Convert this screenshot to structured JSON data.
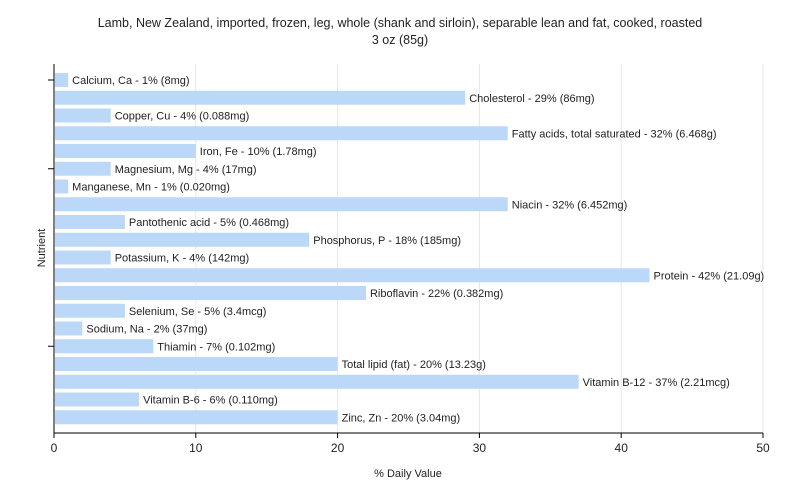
{
  "chart_data": {
    "type": "bar",
    "orientation": "horizontal",
    "title": "Lamb, New Zealand, imported, frozen, leg, whole (shank and sirloin), separable lean and fat, cooked, roasted",
    "subtitle": "3 oz (85g)",
    "xlabel": "% Daily Value",
    "ylabel": "Nutrient",
    "xlim": [
      0,
      50
    ],
    "xticks": [
      0,
      10,
      20,
      30,
      40,
      50
    ],
    "grid": true,
    "bar_color": "#bcd8f8",
    "grid_color": "#e6e6e6",
    "categories": [
      "Calcium, Ca",
      "Cholesterol",
      "Copper, Cu",
      "Fatty acids, total saturated",
      "Iron, Fe",
      "Magnesium, Mg",
      "Manganese, Mn",
      "Niacin",
      "Pantothenic acid",
      "Phosphorus, P",
      "Potassium, K",
      "Protein",
      "Riboflavin",
      "Selenium, Se",
      "Sodium, Na",
      "Thiamin",
      "Total lipid (fat)",
      "Vitamin B-12",
      "Vitamin B-6",
      "Zinc, Zn"
    ],
    "values": [
      1,
      29,
      4,
      32,
      10,
      4,
      1,
      32,
      5,
      18,
      4,
      42,
      22,
      5,
      2,
      7,
      20,
      37,
      6,
      20
    ],
    "labels": [
      "Calcium, Ca - 1% (8mg)",
      "Cholesterol - 29% (86mg)",
      "Copper, Cu - 4% (0.088mg)",
      "Fatty acids, total saturated - 32% (6.468g)",
      "Iron, Fe - 10% (1.78mg)",
      "Magnesium, Mg - 4% (17mg)",
      "Manganese, Mn - 1% (0.020mg)",
      "Niacin - 32% (6.452mg)",
      "Pantothenic acid - 5% (0.468mg)",
      "Phosphorus, P - 18% (185mg)",
      "Potassium, K - 4% (142mg)",
      "Protein - 42% (21.09g)",
      "Riboflavin - 22% (0.382mg)",
      "Selenium, Se - 5% (3.4mcg)",
      "Sodium, Na - 2% (37mg)",
      "Thiamin - 7% (0.102mg)",
      "Total lipid (fat) - 20% (13.23g)",
      "Vitamin B-12 - 37% (2.21mcg)",
      "Vitamin B-6 - 6% (0.110mg)",
      "Zinc, Zn - 20% (3.04mg)"
    ]
  }
}
